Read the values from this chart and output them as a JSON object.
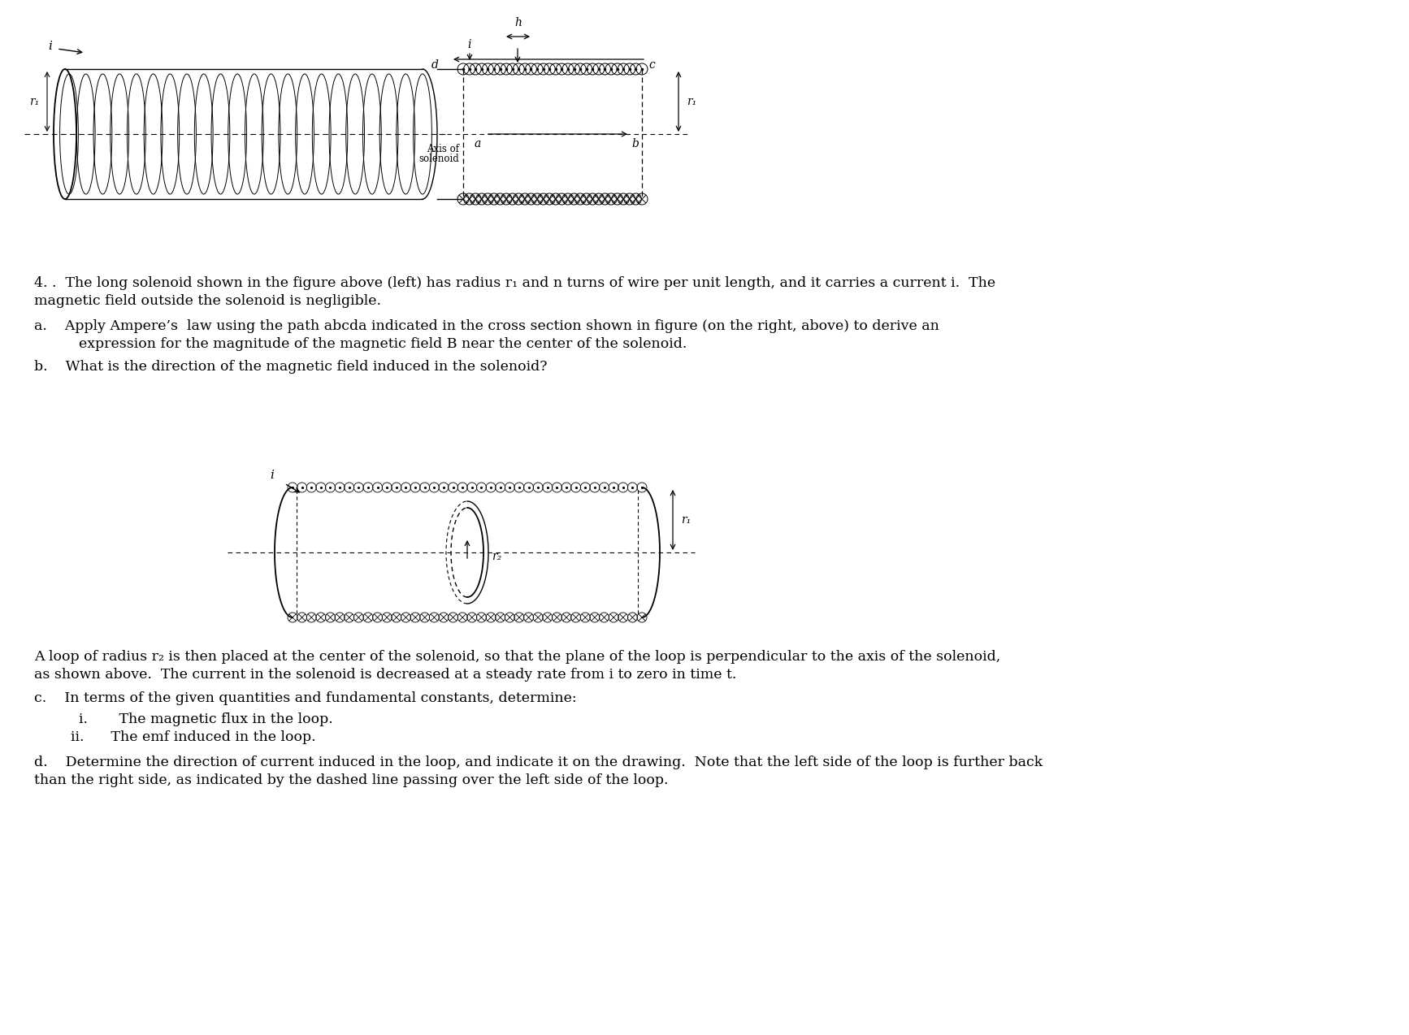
{
  "bg_color": "#ffffff",
  "fig_width": 17.34,
  "fig_height": 12.74,
  "text_color": "#000000",
  "line1": "4. .  The long solenoid shown in the figure above (left) has radius r₁ and n turns of wire per unit length, and it carries a current i.  The",
  "line2": "magnetic field outside the solenoid is negligible.",
  "line_a1": "a.    Apply Ampere’s  law using the path abcda indicated in the cross section shown in figure (on the right, above) to derive an",
  "line_a2": "        expression for the magnitude of the magnetic field B near the center of the solenoid.",
  "line_b": "b.    What is the direction of the magnetic field induced in the solenoid?",
  "line_loop1": "A loop of radius r₂ is then placed at the center of the solenoid, so that the plane of the loop is perpendicular to the axis of the solenoid,",
  "line_loop2": "as shown above.  The current in the solenoid is decreased at a steady rate from i to zero in time t.",
  "line_c": "c.    In terms of the given quantities and fundamental constants, determine:",
  "line_ci": "   i.       The magnetic flux in the loop.",
  "line_cii": "   ii.      The emf induced in the loop.",
  "line_d1": "d.    Determine the direction of current induced in the loop, and indicate it on the drawing.  Note that the left side of the loop is further back",
  "line_d2": "than the right side, as indicated by the dashed line passing over the left side of the loop."
}
